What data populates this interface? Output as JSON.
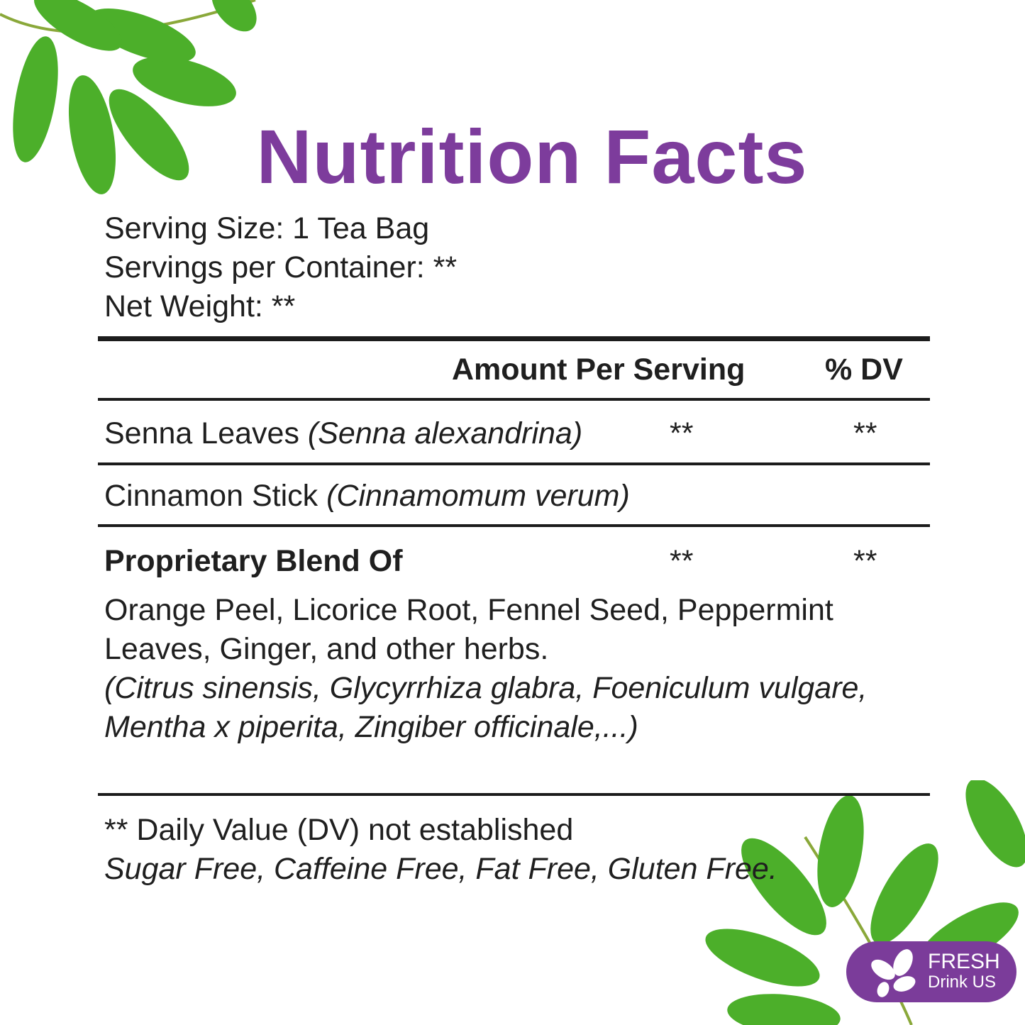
{
  "title": "Nutrition Facts",
  "serving_info": {
    "serving_size": "Serving Size: 1 Tea Bag",
    "servings_per_container": "Servings per Container: **",
    "net_weight": "Net Weight: **"
  },
  "table": {
    "header": {
      "amount": "Amount Per Serving",
      "dv": "% DV"
    },
    "rows": [
      {
        "name": "Senna Leaves",
        "latin": "(Senna alexandrina)",
        "amount": "**",
        "dv": "**"
      },
      {
        "name": "Cinnamon Stick",
        "latin": "(Cinnamomum verum)"
      },
      {
        "name": "Proprietary Blend Of",
        "amount": "**",
        "dv": "**",
        "ingredients": [
          "Orange Peel, Licorice Root, Fennel Seed, Peppermint",
          "Leaves, Ginger, and other herbs."
        ],
        "latin": [
          "(Citrus sinensis, Glycyrrhiza glabra, Foeniculum vulgare,",
          "Mentha x piperita, Zingiber officinale,...)"
        ]
      }
    ]
  },
  "footnote": "** Daily Value (DV) not established",
  "claims": "Sugar Free, Caffeine Free, Fat Free, Gluten Free.",
  "logo": {
    "line1": "FRESH",
    "line2": "Drink US",
    "color": "#7b3c9a"
  },
  "colors": {
    "title": "#7d3c9c",
    "leaf": "#4caf2a"
  }
}
